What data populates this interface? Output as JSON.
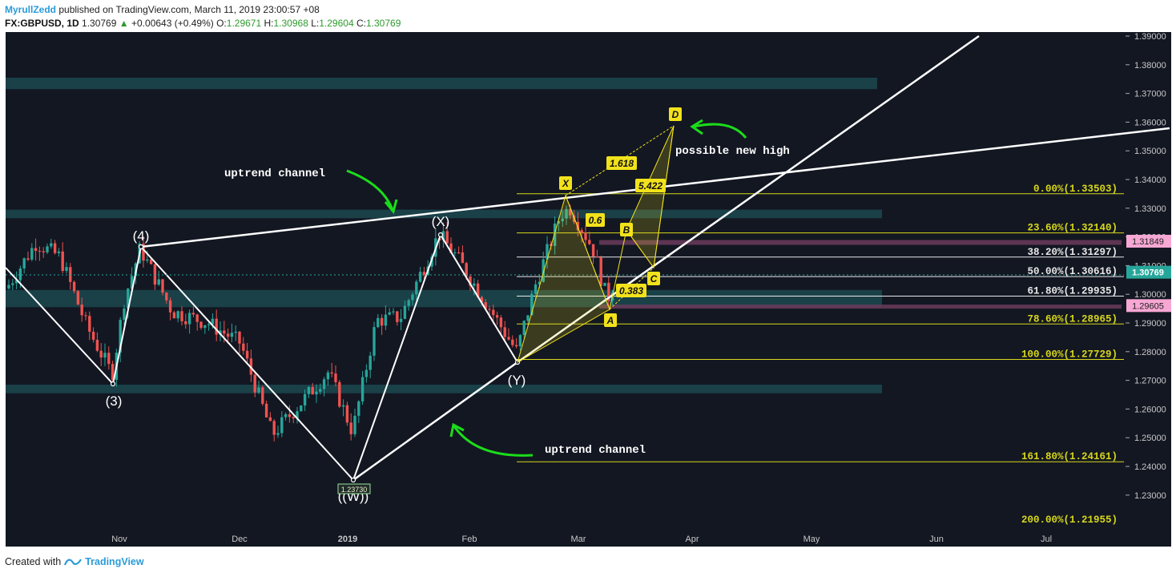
{
  "header": {
    "author": "MyrullZedd",
    "published_text": "published on TradingView.com, March 11, 2019 23:00:57 +08",
    "symbol": "FX:GBPUSD, 1D",
    "last": "1.30769",
    "change": "+0.00643 (+0.49%)",
    "o_label": "O:",
    "o": "1.29671",
    "h_label": "H:",
    "h": "1.30968",
    "l_label": "L:",
    "l": "1.29604",
    "c_label": "C:",
    "c": "1.30769"
  },
  "footer": {
    "created_with": "Created with",
    "brand": "TradingView"
  },
  "colors": {
    "background": "#131722",
    "up": "#26a69a",
    "down": "#ef5350",
    "zone": "#1d4f55",
    "fib": "#d8d81a",
    "white_line": "#ffffff",
    "annotation_green": "#1bdc1b",
    "last_price_tag": "#26a69a",
    "pink_tag": "#f7a7d4"
  },
  "chart_data": {
    "type": "candlestick",
    "symbol": "FX:GBPUSD",
    "timeframe": "1D",
    "ylim": [
      1.219,
      1.391
    ],
    "y_ticks": [
      "1.39000",
      "1.38000",
      "1.37000",
      "1.36000",
      "1.35000",
      "1.34000",
      "1.33000",
      "1.32000",
      "1.31000",
      "1.30000",
      "1.29000",
      "1.28000",
      "1.27000",
      "1.26000",
      "1.25000",
      "1.24000",
      "1.23000"
    ],
    "x_labels": [
      "Nov",
      "Dec",
      "2019",
      "Feb",
      "Mar",
      "Apr",
      "May",
      "Jun",
      "Jul"
    ],
    "last_price": "1.30769",
    "price_tags": [
      "1.31849",
      "1.29605"
    ],
    "low_marker": "1.23730",
    "support_resistance_zones": [
      [
        1.3715,
        1.3755
      ],
      [
        1.3265,
        1.3295
      ],
      [
        1.2955,
        1.3015
      ],
      [
        1.2655,
        1.2685
      ]
    ],
    "fib_levels": [
      {
        "label": "0.00%(1.33503)",
        "price": 1.33503
      },
      {
        "label": "23.60%(1.32140)",
        "price": 1.3214
      },
      {
        "label": "38.20%(1.31297)",
        "price": 1.31297
      },
      {
        "label": "50.00%(1.30616)",
        "price": 1.30616
      },
      {
        "label": "61.80%(1.29935)",
        "price": 1.29935
      },
      {
        "label": "78.60%(1.28965)",
        "price": 1.28965
      },
      {
        "label": "100.00%(1.27729)",
        "price": 1.27729
      },
      {
        "label": "161.80%(1.24161)",
        "price": 1.24161
      },
      {
        "label": "200.00%(1.21955)",
        "price": 1.21955
      }
    ],
    "wave_labels": [
      "(3)",
      "(4)",
      "((W))",
      "(X)",
      "(Y)"
    ],
    "harmonic_points": [
      "X",
      "A",
      "B",
      "C",
      "D"
    ],
    "harmonic_ratios": [
      "1.618",
      "0.6",
      "5.422",
      "0.383"
    ],
    "annotations": [
      "uptrend channel",
      "uptrend channel",
      "possible new high"
    ]
  }
}
